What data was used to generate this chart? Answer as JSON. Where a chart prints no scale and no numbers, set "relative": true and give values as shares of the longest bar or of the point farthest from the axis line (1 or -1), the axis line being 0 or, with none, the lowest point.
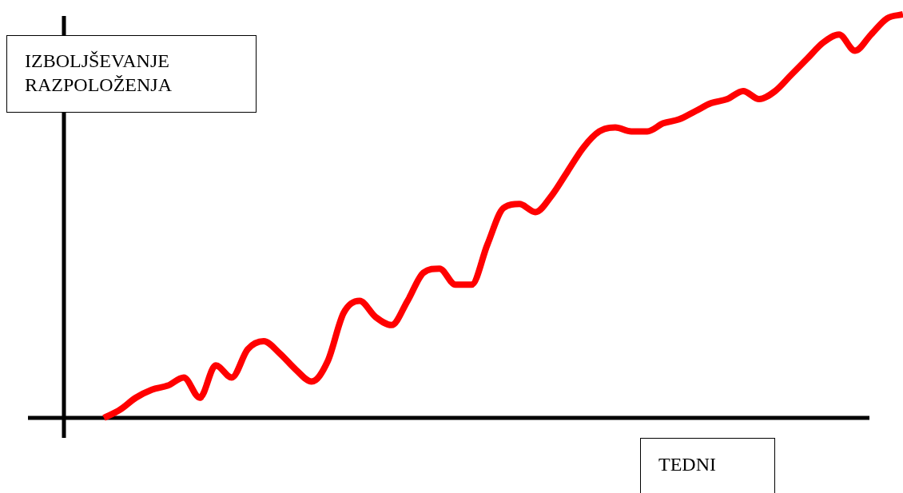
{
  "chart_data": {
    "type": "line",
    "relative": true,
    "xlabel": "TEDNI",
    "ylabel": "IZBOLJŠEVANJE RAZPOLOŽENJA",
    "legend": false,
    "marker": "none",
    "line_style": "solid",
    "categories": [
      null,
      null,
      null,
      null,
      null,
      null,
      null,
      null,
      null,
      null,
      null,
      null,
      null,
      null,
      null,
      null,
      null,
      null,
      null,
      null,
      null,
      null,
      null,
      null,
      null,
      null,
      null,
      null,
      null,
      null,
      null,
      null,
      null,
      null,
      null,
      null,
      null,
      null,
      null,
      null,
      null,
      null,
      null,
      null,
      null,
      null,
      null,
      null,
      null,
      null,
      null
    ],
    "series": [
      {
        "color": "#ff0000",
        "values": [
          0,
          0.02,
          0.05,
          0.07,
          0.08,
          0.1,
          0.05,
          0.13,
          0.1,
          0.17,
          0.19,
          0.16,
          0.12,
          0.09,
          0.14,
          0.26,
          0.29,
          0.25,
          0.23,
          0.29,
          0.36,
          0.37,
          0.33,
          0.33,
          0.43,
          0.52,
          0.53,
          0.51,
          0.55,
          0.61,
          0.67,
          0.71,
          0.72,
          0.71,
          0.71,
          0.73,
          0.74,
          0.76,
          0.78,
          0.79,
          0.81,
          0.79,
          0.81,
          0.85,
          0.89,
          0.93,
          0.95,
          0.91,
          0.95,
          0.99,
          1
        ]
      }
    ]
  }
}
